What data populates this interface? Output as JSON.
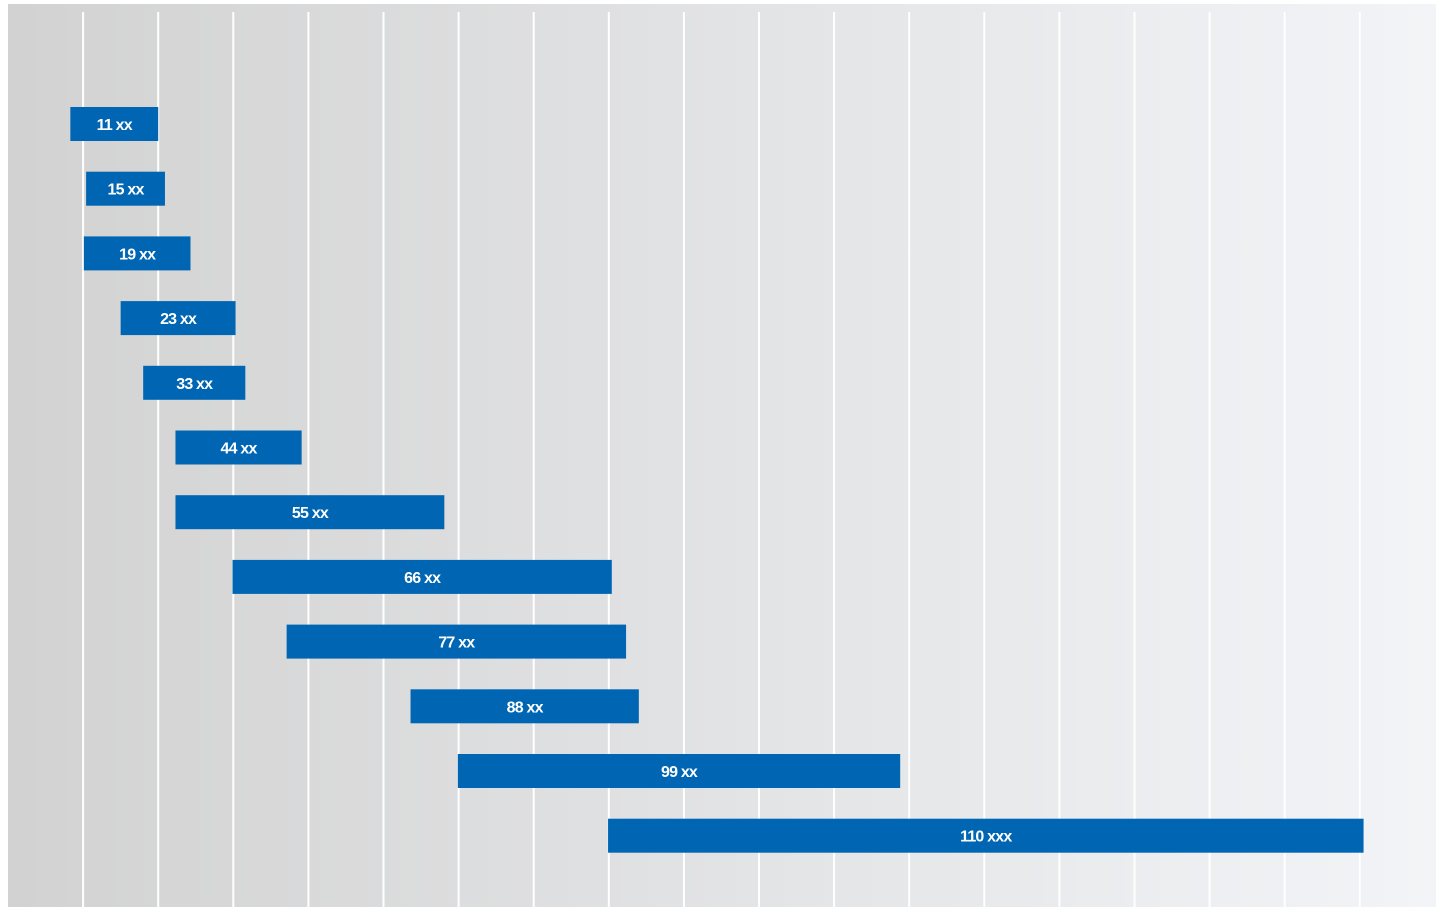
{
  "chart_data": {
    "type": "bar",
    "orientation": "horizontal-range",
    "grid": true,
    "colors": {
      "bar": "#0066b3",
      "background_left": "#d2d2d2",
      "background_right": "#f2f4f7",
      "gridline": "#ffffff"
    },
    "xlim": [
      0,
      18.9
    ],
    "gridlines_x": [
      1,
      2,
      3,
      4,
      5,
      6,
      7,
      8,
      9,
      10,
      11,
      12,
      13,
      14,
      15,
      16,
      17,
      18
    ],
    "bars": [
      {
        "label": "11 xx",
        "start": 0.83,
        "end": 2.0
      },
      {
        "label": "15 xx",
        "start": 1.04,
        "end": 2.09
      },
      {
        "label": "19 xx",
        "start": 1.01,
        "end": 2.43
      },
      {
        "label": "23 xx",
        "start": 1.5,
        "end": 3.03
      },
      {
        "label": "33 xx",
        "start": 1.8,
        "end": 3.16
      },
      {
        "label": "44 xx",
        "start": 2.23,
        "end": 3.91
      },
      {
        "label": "55 xx",
        "start": 2.23,
        "end": 5.81
      },
      {
        "label": "66 xx",
        "start": 2.99,
        "end": 8.04
      },
      {
        "label": "77 xx",
        "start": 3.71,
        "end": 8.23
      },
      {
        "label": "88 xx",
        "start": 5.36,
        "end": 8.4
      },
      {
        "label": "99 xx",
        "start": 5.99,
        "end": 11.88
      },
      {
        "label": "110 xxx",
        "start": 7.99,
        "end": 18.05
      }
    ]
  }
}
